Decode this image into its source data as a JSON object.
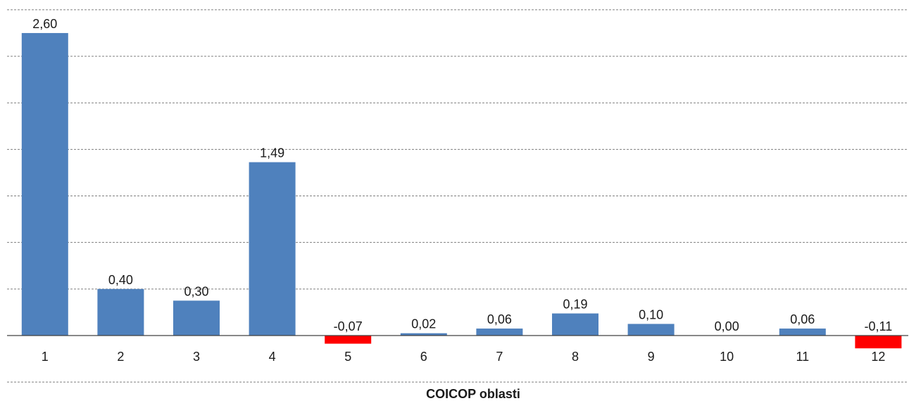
{
  "chart_data": {
    "type": "bar",
    "categories": [
      "1",
      "2",
      "3",
      "4",
      "5",
      "6",
      "7",
      "8",
      "9",
      "10",
      "11",
      "12"
    ],
    "values": [
      2.6,
      0.4,
      0.3,
      1.49,
      -0.07,
      0.02,
      0.06,
      0.19,
      0.1,
      0.0,
      0.06,
      -0.11
    ],
    "value_labels": [
      "2,60",
      "0,40",
      "0,30",
      "1,49",
      "-0,07",
      "0,02",
      "0,06",
      "0,19",
      "0,10",
      "0,00",
      "0,06",
      "-0,11"
    ],
    "title": "",
    "xlabel": "COICOP oblasti",
    "ylabel": "",
    "ylim": [
      -0.4,
      2.8
    ],
    "grid": true,
    "colors": {
      "positive": "#4f81bd",
      "negative": "#ff0000",
      "grid": "#7f7f7f",
      "axis": "#404040",
      "text": "#1a1a1a"
    }
  }
}
